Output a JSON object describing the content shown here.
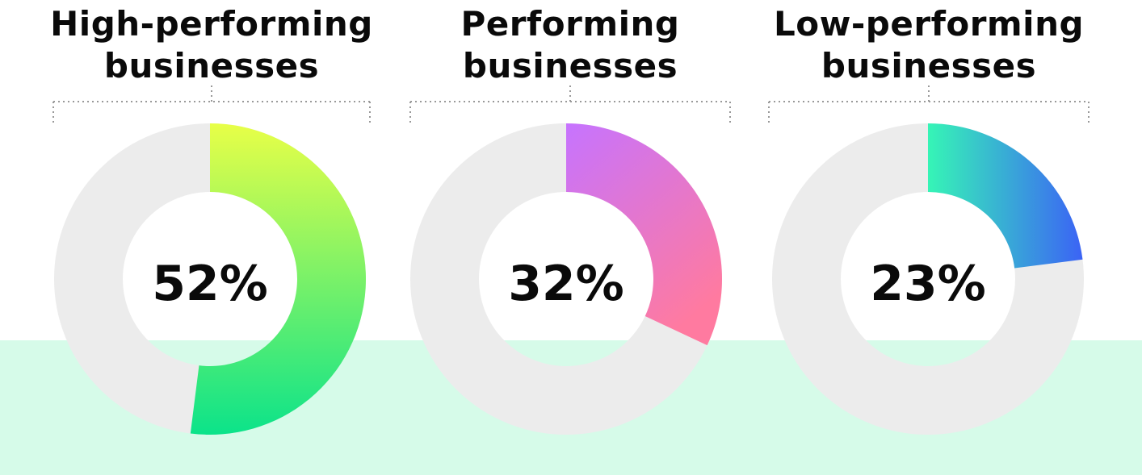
{
  "chart_data": {
    "type": "pie",
    "variant": "donut",
    "charts": [
      {
        "title": "High-performing businesses",
        "title_lines": [
          "High-performing",
          "businesses"
        ],
        "value": 52,
        "label": "52%",
        "gradient": [
          "#e8ff47",
          "#0be38a"
        ],
        "gradient_direction": "vertical"
      },
      {
        "title": "Performing businesses",
        "title_lines": [
          "Performing",
          "businesses"
        ],
        "value": 32,
        "label": "32%",
        "gradient": [
          "#c673ff",
          "#ff7aa0"
        ],
        "gradient_direction": "diagonal"
      },
      {
        "title": "Low-performing businesses",
        "title_lines": [
          "Low-performing",
          "businesses"
        ],
        "value": 23,
        "label": "23%",
        "gradient": [
          "#36f5b6",
          "#3b63f5"
        ],
        "gradient_direction": "horizontal"
      }
    ],
    "remainder_color": "#ececec",
    "band_color": "#d6fbe9",
    "bracket_color": "#999999"
  }
}
